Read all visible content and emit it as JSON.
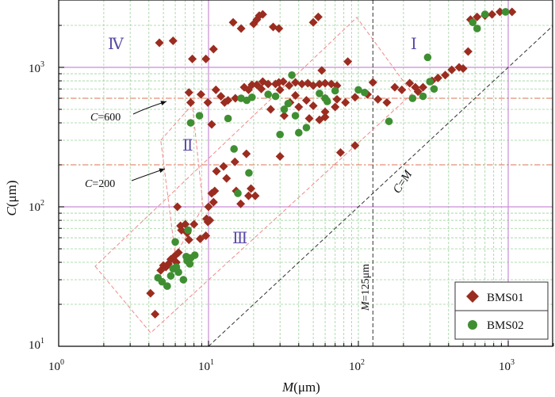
{
  "chart_data": {
    "type": "scatter",
    "x_scale": "log",
    "y_scale": "log",
    "xlim": [
      1,
      2000
    ],
    "ylim": [
      10,
      2600
    ],
    "grid": true,
    "legend_position": "bottom-right",
    "xlabel": {
      "italic": "M",
      "rest": "(μm)"
    },
    "ylabel": {
      "italic": "C",
      "rest": "(μm)"
    },
    "x_tick_labels": [
      {
        "value": 1,
        "base": "10",
        "exp": "0"
      },
      {
        "value": 10,
        "base": "10",
        "exp": "1"
      },
      {
        "value": 100,
        "base": "10",
        "exp": "2"
      },
      {
        "value": 1000,
        "base": "10",
        "exp": "3"
      }
    ],
    "y_tick_labels": [
      {
        "value": 10,
        "base": "10",
        "exp": "1"
      },
      {
        "value": 100,
        "base": "10",
        "exp": "2"
      },
      {
        "value": 1000,
        "base": "10",
        "exp": "3"
      }
    ],
    "annotations": {
      "region_I": "Ⅰ",
      "region_II": "Ⅱ",
      "region_III": "Ⅲ",
      "region_IV": "Ⅳ",
      "c600": {
        "italic": "C",
        "rest": "=600"
      },
      "c200": {
        "italic": "C",
        "rest": "=200"
      },
      "c_eq_m": {
        "italic1": "C",
        "mid": "=",
        "italic2": "M"
      },
      "m125": {
        "italic": "M",
        "rest": "=125μm"
      }
    },
    "reference_lines": {
      "horizontal_solid": [
        100,
        1000
      ],
      "vertical_solid": [
        10,
        1000
      ],
      "horizontal_dashed": [
        200,
        600
      ],
      "vertical_dashed": [
        125
      ],
      "diagonal": "C=M",
      "colors": {
        "solid": "#c98ed6",
        "dashed": "#e07050",
        "diagonal": "#333333",
        "grid": "#9bd19b",
        "dashed_box": "#f08a8a"
      }
    },
    "series": [
      {
        "name": "BMS01",
        "marker": "diamond",
        "color": "#9b2c20",
        "points": [
          [
            4.1,
            24
          ],
          [
            4.4,
            17
          ],
          [
            4.8,
            35
          ],
          [
            5.0,
            38
          ],
          [
            5.2,
            37
          ],
          [
            5.4,
            39
          ],
          [
            5.6,
            42
          ],
          [
            5.9,
            44
          ],
          [
            6.1,
            40
          ],
          [
            6.3,
            47
          ],
          [
            6.5,
            73
          ],
          [
            6.2,
            100
          ],
          [
            6.6,
            68
          ],
          [
            7.2,
            65
          ],
          [
            7.4,
            58
          ],
          [
            7.0,
            75
          ],
          [
            8.0,
            75
          ],
          [
            8.8,
            59
          ],
          [
            9.7,
            82
          ],
          [
            9.9,
            78
          ],
          [
            9.6,
            62
          ],
          [
            10.2,
            80
          ],
          [
            10.5,
            125
          ],
          [
            10.0,
            100
          ],
          [
            10.8,
            108
          ],
          [
            11.0,
            130
          ],
          [
            11.3,
            180
          ],
          [
            13.2,
            160
          ],
          [
            12.6,
            195
          ],
          [
            15.0,
            210
          ],
          [
            15.3,
            130
          ],
          [
            16.4,
            105
          ],
          [
            18.5,
            120
          ],
          [
            19.2,
            135
          ],
          [
            20.5,
            120
          ],
          [
            17.9,
            240
          ],
          [
            7.4,
            660
          ],
          [
            7.6,
            560
          ],
          [
            8.9,
            640
          ],
          [
            9.9,
            560
          ],
          [
            10.5,
            390
          ],
          [
            11.2,
            690
          ],
          [
            12.1,
            620
          ],
          [
            13.5,
            580
          ],
          [
            12.8,
            560
          ],
          [
            15.1,
            600
          ],
          [
            17.3,
            720
          ],
          [
            18.5,
            690
          ],
          [
            19.5,
            750
          ],
          [
            21.0,
            750
          ],
          [
            22.5,
            700
          ],
          [
            25.0,
            760
          ],
          [
            23.0,
            790
          ],
          [
            28.0,
            760
          ],
          [
            29.5,
            780
          ],
          [
            31.5,
            790
          ],
          [
            34.5,
            740
          ],
          [
            38.0,
            780
          ],
          [
            42.0,
            760
          ],
          [
            46.0,
            770
          ],
          [
            50.0,
            740
          ],
          [
            55.0,
            760
          ],
          [
            60.0,
            770
          ],
          [
            66.0,
            760
          ],
          [
            72.0,
            740
          ],
          [
            30.0,
            690
          ],
          [
            38.0,
            630
          ],
          [
            45.0,
            580
          ],
          [
            50.0,
            530
          ],
          [
            60.0,
            480
          ],
          [
            70.0,
            520
          ],
          [
            82.0,
            560
          ],
          [
            95.0,
            610
          ],
          [
            115.0,
            640
          ],
          [
            135.0,
            590
          ],
          [
            155.0,
            560
          ],
          [
            175.0,
            720
          ],
          [
            195.0,
            690
          ],
          [
            250.0,
            670
          ],
          [
            270.0,
            720
          ],
          [
            310.0,
            800
          ],
          [
            340.0,
            840
          ],
          [
            380.0,
            880
          ],
          [
            420.0,
            960
          ],
          [
            470.0,
            1000
          ],
          [
            500.0,
            980
          ],
          [
            540.0,
            1300
          ],
          [
            560.0,
            2200
          ],
          [
            620.0,
            2300
          ],
          [
            700.0,
            2350
          ],
          [
            780.0,
            2400
          ],
          [
            880.0,
            2500
          ],
          [
            1060.0,
            2500
          ],
          [
            4.7,
            1500
          ],
          [
            5.8,
            1550
          ],
          [
            7.8,
            1150
          ],
          [
            9.6,
            1150
          ],
          [
            10.8,
            1350
          ],
          [
            14.6,
            2100
          ],
          [
            16.5,
            1900
          ],
          [
            20.0,
            2050
          ],
          [
            21.0,
            2200
          ],
          [
            21.8,
            2350
          ],
          [
            23.0,
            2400
          ],
          [
            27.0,
            1950
          ],
          [
            29.5,
            1900
          ],
          [
            50.0,
            2100
          ],
          [
            54.0,
            2300
          ],
          [
            57.0,
            950
          ],
          [
            85.0,
            1100
          ],
          [
            30.0,
            230
          ],
          [
            32.0,
            450
          ],
          [
            47.0,
            430
          ],
          [
            55.0,
            420
          ],
          [
            60.0,
            440
          ],
          [
            76.0,
            245
          ],
          [
            95.0,
            275
          ],
          [
            72.0,
            590
          ],
          [
            60.0,
            600
          ],
          [
            125.0,
            780
          ],
          [
            220.0,
            770
          ],
          [
            240.0,
            720
          ],
          [
            26.0,
            500
          ],
          [
            40.0,
            520
          ],
          [
            35.0,
            560
          ]
        ]
      },
      {
        "name": "BMS02",
        "marker": "circle",
        "color": "#3f8f32",
        "points": [
          [
            4.6,
            31
          ],
          [
            4.9,
            29
          ],
          [
            5.3,
            27
          ],
          [
            5.6,
            32
          ],
          [
            5.8,
            36
          ],
          [
            6.1,
            37
          ],
          [
            6.3,
            34
          ],
          [
            6.8,
            30
          ],
          [
            7.2,
            41
          ],
          [
            7.5,
            39
          ],
          [
            7.1,
            44
          ],
          [
            7.6,
            43
          ],
          [
            8.1,
            45
          ],
          [
            6.0,
            56
          ],
          [
            7.3,
            68
          ],
          [
            7.6,
            400
          ],
          [
            8.7,
            450
          ],
          [
            13.5,
            430
          ],
          [
            14.8,
            260
          ],
          [
            15.7,
            125
          ],
          [
            18.6,
            175
          ],
          [
            16.5,
            600
          ],
          [
            18.0,
            580
          ],
          [
            19.5,
            610
          ],
          [
            25.0,
            640
          ],
          [
            28.0,
            620
          ],
          [
            30.0,
            330
          ],
          [
            32.0,
            500
          ],
          [
            34.0,
            550
          ],
          [
            36.0,
            880
          ],
          [
            38.0,
            450
          ],
          [
            40.0,
            340
          ],
          [
            45.0,
            370
          ],
          [
            55.0,
            650
          ],
          [
            60.0,
            600
          ],
          [
            62.0,
            570
          ],
          [
            70.0,
            680
          ],
          [
            100.0,
            690
          ],
          [
            110.0,
            660
          ],
          [
            160.0,
            410
          ],
          [
            230.0,
            600
          ],
          [
            270.0,
            620
          ],
          [
            300.0,
            790
          ],
          [
            290.0,
            1180
          ],
          [
            320.0,
            700
          ],
          [
            580.0,
            2100
          ],
          [
            620.0,
            1900
          ],
          [
            700.0,
            2400
          ],
          [
            960.0,
            2500
          ]
        ]
      }
    ]
  }
}
